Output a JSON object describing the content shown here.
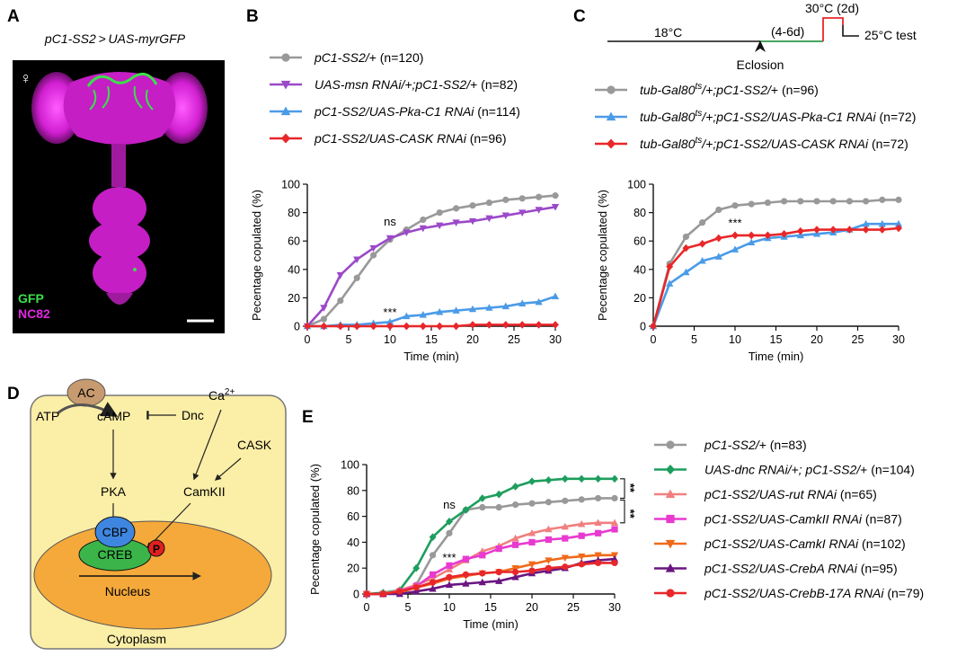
{
  "panels": {
    "A": {
      "label": "A",
      "title": "pC1-SS2 > UAS-myrGFP",
      "sex_symbol": "♀",
      "stain_gfp": "GFP",
      "stain_nc82": "NC82",
      "color_gfp": "#3ce04a",
      "color_nc82": "#e028e0"
    },
    "B": {
      "label": "B"
    },
    "C": {
      "label": "C"
    },
    "D": {
      "label": "D"
    },
    "E": {
      "label": "E"
    }
  },
  "timeline": {
    "t18": "18°C",
    "t46": "(4-6d)",
    "t30": "30°C (2d)",
    "t25": "25°C test",
    "eclosion": "Eclosion",
    "color_green": "#2e9a4a",
    "color_red": "#e8272a"
  },
  "pathway": {
    "AC": "AC",
    "ATP": "ATP",
    "cAMP": "cAMP",
    "Dnc": "Dnc",
    "Ca": "Ca",
    "Ca_sup": "2+",
    "CASK": "CASK",
    "PKA": "PKA",
    "CamKII": "CamKII",
    "CBP": "CBP",
    "CREB": "CREB",
    "P": "P",
    "Nucleus": "Nucleus",
    "Cytoplasm": "Cytoplasm",
    "color_cell": "#fbeea6",
    "color_nucleus": "#f5a93a",
    "color_ac": "#c79a6f",
    "color_cbp": "#3f86e0",
    "color_creb": "#3bb54a",
    "color_p": "#e02020"
  },
  "chart_data": [
    {
      "id": "B",
      "type": "line",
      "xlabel": "Time (min)",
      "ylabel": "Pecentage copulated (%)",
      "xlim": [
        0,
        30
      ],
      "ylim": [
        0,
        100
      ],
      "xticks": [
        "0",
        "5",
        "10",
        "15",
        "20",
        "25",
        "30"
      ],
      "yticks": [
        "0",
        "20",
        "40",
        "60",
        "80",
        "100"
      ],
      "x": [
        0,
        2,
        4,
        6,
        8,
        10,
        12,
        14,
        16,
        18,
        20,
        22,
        24,
        26,
        28,
        30
      ],
      "annotations": [
        {
          "text": "ns",
          "x": 10,
          "y": 71
        },
        {
          "text": "***",
          "x": 10,
          "y": 7
        }
      ],
      "series": [
        {
          "name": "pC1-SS2/+",
          "legend_genotype": "pC1-SS2/",
          "legend_suffix": "+ (n=120)",
          "color": "#999999",
          "marker": "circle",
          "values": [
            0,
            5,
            18,
            34,
            50,
            61,
            68,
            75,
            80,
            83,
            85,
            87,
            89,
            90,
            91,
            92
          ]
        },
        {
          "name": "UAS-msn RNAi/+;pC1-SS2/+",
          "legend_genotype": "UAS-msn RNAi/+;pC1-SS2/",
          "legend_suffix": "+ (n=82)",
          "color": "#9b49c9",
          "marker": "triangle-down",
          "values": [
            0,
            13,
            36,
            47,
            55,
            62,
            66,
            69,
            71,
            73,
            74,
            76,
            78,
            80,
            82,
            84
          ]
        },
        {
          "name": "pC1-SS2/UAS-Pka-C1 RNAi",
          "legend_genotype": "pC1-SS2/UAS-Pka-C1 RNAi",
          "legend_suffix": " (n=114)",
          "color": "#4b9be8",
          "marker": "triangle-up",
          "values": [
            0,
            0,
            1,
            1,
            2,
            3,
            7,
            8,
            10,
            11,
            12,
            13,
            14,
            16,
            17,
            21
          ]
        },
        {
          "name": "pC1-SS2/UAS-CASK RNAi",
          "legend_genotype": "pC1-SS2/UAS-CASK RNAi",
          "legend_suffix": " (n=96)",
          "color": "#e8272a",
          "marker": "diamond",
          "values": [
            0,
            0,
            0,
            0,
            0,
            0,
            0,
            0,
            0,
            0,
            1,
            1,
            1,
            1,
            1,
            1
          ]
        }
      ]
    },
    {
      "id": "C",
      "type": "line",
      "xlabel": "Time (min)",
      "ylabel": "Pecentage copulated (%)",
      "xlim": [
        0,
        30
      ],
      "ylim": [
        0,
        100
      ],
      "xticks": [
        "0",
        "5",
        "10",
        "15",
        "20",
        "25",
        "30"
      ],
      "yticks": [
        "0",
        "20",
        "40",
        "60",
        "80",
        "100"
      ],
      "x": [
        0,
        2,
        4,
        6,
        8,
        10,
        12,
        14,
        16,
        18,
        20,
        22,
        24,
        26,
        28,
        30
      ],
      "annotations": [
        {
          "text": "***",
          "x": 10,
          "y": 70
        }
      ],
      "series": [
        {
          "name": "tub-Gal80ts/+;pC1-SS2/+",
          "legend_genotype": "tub-Gal80",
          "legend_sup": "ts",
          "legend_rest": "/+;pC1-SS2/",
          "legend_suffix": "+ (n=96)",
          "color": "#999999",
          "marker": "circle",
          "values": [
            0,
            44,
            63,
            73,
            82,
            85,
            86,
            87,
            88,
            88,
            88,
            88,
            88,
            88,
            89,
            89
          ]
        },
        {
          "name": "tub-Gal80ts/+;pC1-SS2/UAS-Pka-C1 RNAi",
          "legend_genotype": "tub-Gal80",
          "legend_sup": "ts",
          "legend_rest": "/+;pC1-SS2/UAS-Pka-C1 RNAi",
          "legend_suffix": " (n=72)",
          "color": "#4b9be8",
          "marker": "triangle-up",
          "values": [
            0,
            30,
            38,
            46,
            49,
            54,
            59,
            62,
            63,
            64,
            65,
            66,
            68,
            72,
            72,
            72
          ]
        },
        {
          "name": "tub-Gal80ts/+;pC1-SS2/UAS-CASK RNAi",
          "legend_genotype": "tub-Gal80",
          "legend_sup": "ts",
          "legend_rest": "/+;pC1-SS2/UAS-CASK RNAi",
          "legend_suffix": " (n=72)",
          "color": "#e8272a",
          "marker": "diamond",
          "values": [
            0,
            42,
            55,
            58,
            62,
            64,
            64,
            64,
            65,
            67,
            68,
            68,
            68,
            68,
            68,
            69
          ]
        }
      ]
    },
    {
      "id": "E",
      "type": "line",
      "xlabel": "Time (min)",
      "ylabel": "Pecentage copulated (%)",
      "xlim": [
        0,
        30
      ],
      "ylim": [
        0,
        100
      ],
      "xticks": [
        "0",
        "5",
        "10",
        "15",
        "20",
        "25",
        "30"
      ],
      "yticks": [
        "0",
        "20",
        "40",
        "60",
        "80",
        "100"
      ],
      "x": [
        0,
        2,
        4,
        6,
        8,
        10,
        12,
        14,
        16,
        18,
        20,
        22,
        24,
        26,
        28,
        30
      ],
      "annotations": [
        {
          "text": "ns",
          "x": 10,
          "y": 66
        },
        {
          "text": "***",
          "x": 10,
          "y": 25
        },
        {
          "text": "**",
          "x": 31,
          "y": 82
        },
        {
          "text": "**",
          "x": 31,
          "y": 62
        }
      ],
      "series": [
        {
          "name": "pC1-SS2/+",
          "legend_genotype": "pC1-SS2/",
          "legend_suffix": "+ (n=83)",
          "color": "#999999",
          "marker": "circle",
          "values": [
            0,
            0,
            2,
            7,
            30,
            47,
            65,
            67,
            67,
            69,
            70,
            71,
            72,
            73,
            74,
            74
          ]
        },
        {
          "name": "UAS-dnc RNAi/+; pC1-SS2/+",
          "legend_genotype": "UAS-dnc RNAi/+; pC1-SS2/",
          "legend_suffix": "+ (n=104)",
          "color": "#1e9e5e",
          "marker": "diamond",
          "values": [
            0,
            1,
            3,
            20,
            44,
            56,
            65,
            74,
            77,
            83,
            87,
            88,
            89,
            89,
            89,
            89
          ]
        },
        {
          "name": "pC1-SS2/UAS-rut RNAi",
          "legend_genotype": "pC1-SS2/UAS-rut RNAi",
          "legend_suffix": " (n=65)",
          "color": "#f07f80",
          "marker": "triangle-up",
          "values": [
            0,
            0,
            3,
            7,
            12,
            19,
            26,
            33,
            37,
            43,
            47,
            50,
            52,
            54,
            55,
            55
          ]
        },
        {
          "name": "pC1-SS2/UAS-CamkII RNAi",
          "legend_genotype": "pC1-SS2/UAS-CamkII RNAi",
          "legend_suffix": " (n=87)",
          "color": "#e83ad0",
          "marker": "square",
          "values": [
            0,
            0,
            2,
            6,
            15,
            22,
            27,
            30,
            35,
            38,
            40,
            42,
            43,
            45,
            47,
            50
          ]
        },
        {
          "name": "pC1-SS2/UAS-CamkI RNAi",
          "legend_genotype": "pC1-SS2/UAS-CamkI RNAi",
          "legend_suffix": " (n=102)",
          "color": "#f06a1a",
          "marker": "triangle-down",
          "values": [
            0,
            0,
            1,
            5,
            8,
            12,
            14,
            16,
            17,
            20,
            23,
            26,
            28,
            29,
            30,
            30
          ]
        },
        {
          "name": "pC1-SS2/UAS-CrebA RNAi",
          "legend_genotype": "pC1-SS2/UAS-CrebA RNAi",
          "legend_suffix": " (n=95)",
          "color": "#6a1580",
          "marker": "triangle-up",
          "values": [
            0,
            0,
            0,
            2,
            4,
            7,
            8,
            9,
            10,
            13,
            16,
            18,
            20,
            24,
            26,
            27
          ]
        },
        {
          "name": "pC1-SS2/UAS-CrebB-17A RNAi",
          "legend_genotype": "pC1-SS2/UAS-CrebB-17A RNAi",
          "legend_suffix": " (n=79)",
          "color": "#e8272a",
          "marker": "circle",
          "values": [
            0,
            0,
            2,
            5,
            9,
            13,
            15,
            16,
            17,
            17,
            18,
            20,
            21,
            23,
            24,
            24
          ]
        }
      ]
    }
  ]
}
